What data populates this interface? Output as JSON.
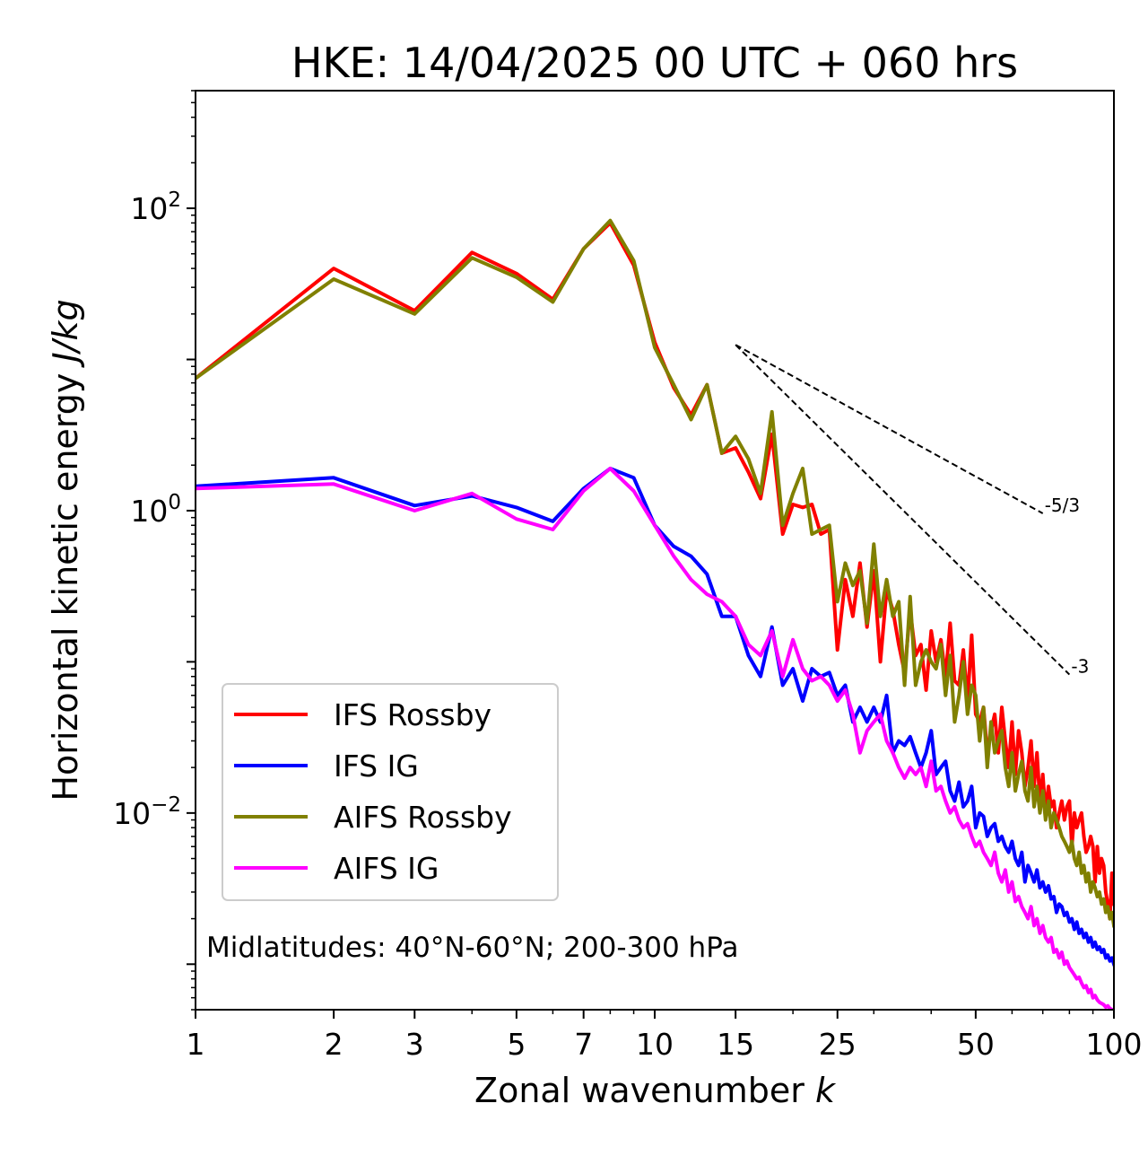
{
  "chart_data": {
    "type": "line",
    "title": "HKE: 14/04/2025 00 UTC + 060 hrs",
    "xlabel": "Zonal wavenumber",
    "xlabel_var": "k",
    "ylabel": "Horizontal kinetic energy",
    "ylabel_unit": "J/kg",
    "xscale": "log",
    "yscale": "log",
    "xlim": [
      1,
      100
    ],
    "ylim": [
      0.0005,
      600
    ],
    "xticks": [
      1,
      2,
      3,
      5,
      7,
      10,
      15,
      25,
      50,
      100
    ],
    "xtick_labels": [
      "1",
      "2",
      "3",
      "5",
      "7",
      "10",
      "15",
      "25",
      "50",
      "100"
    ],
    "yticks": [
      0.01,
      1,
      100
    ],
    "ytick_labels": [
      {
        "base": "10",
        "exp": "−2"
      },
      {
        "base": "10",
        "exp": "0"
      },
      {
        "base": "10",
        "exp": "2"
      }
    ],
    "grid": false,
    "legend_position": "lower-left",
    "annotation": "Midlatitudes: 40°N-60°N; 200-300 hPa",
    "reference_lines": [
      {
        "label": "-5/3",
        "slope": -1.6667,
        "x": [
          15,
          70
        ],
        "y0": 12.5,
        "color": "#000000"
      },
      {
        "label": "-3",
        "slope": -3,
        "x": [
          15,
          80
        ],
        "y0": 12.5,
        "color": "#000000"
      }
    ],
    "series": [
      {
        "name": "IFS Rossby",
        "color": "#ff0000",
        "x": [
          1,
          2,
          3,
          4,
          5,
          6,
          7,
          8,
          9,
          10,
          11,
          12,
          13,
          14,
          15,
          16,
          17,
          18,
          19,
          20,
          21,
          22,
          23,
          24,
          25,
          26,
          27,
          28,
          29,
          30,
          31,
          32,
          33,
          34,
          35,
          36,
          37,
          38,
          39,
          40,
          41,
          42,
          43,
          44,
          45,
          46,
          47,
          48,
          49,
          50,
          51,
          52,
          53,
          54,
          55,
          56,
          57,
          58,
          59,
          60,
          61,
          62,
          63,
          64,
          65,
          66,
          67,
          68,
          69,
          70,
          71,
          72,
          73,
          74,
          75,
          76,
          77,
          78,
          79,
          80,
          81,
          82,
          83,
          84,
          85,
          86,
          87,
          88,
          89,
          90,
          91,
          92,
          93,
          94,
          95,
          96,
          97,
          98,
          99,
          100
        ],
        "y": [
          7.5,
          40,
          21,
          51,
          37,
          25,
          54,
          80,
          42,
          13,
          6.5,
          4.3,
          6.8,
          2.4,
          2.6,
          1.8,
          1.2,
          3.2,
          0.7,
          1.1,
          1.05,
          1.1,
          0.7,
          0.75,
          0.12,
          0.35,
          0.2,
          0.45,
          0.17,
          0.4,
          0.1,
          0.3,
          0.22,
          0.13,
          0.085,
          0.22,
          0.11,
          0.13,
          0.065,
          0.16,
          0.1,
          0.14,
          0.08,
          0.18,
          0.075,
          0.07,
          0.12,
          0.055,
          0.15,
          0.045,
          0.04,
          0.05,
          0.025,
          0.035,
          0.045,
          0.025,
          0.05,
          0.03,
          0.02,
          0.04,
          0.018,
          0.035,
          0.025,
          0.015,
          0.02,
          0.03,
          0.015,
          0.025,
          0.012,
          0.018,
          0.01,
          0.015,
          0.011,
          0.012,
          0.008,
          0.01,
          0.012,
          0.009,
          0.011,
          0.012,
          0.006,
          0.01,
          0.008,
          0.009,
          0.01,
          0.007,
          0.0055,
          0.006,
          0.007,
          0.006,
          0.0035,
          0.006,
          0.004,
          0.005,
          0.0045,
          0.003,
          0.0025,
          0.002,
          0.004,
          0.0025
        ]
      },
      {
        "name": "IFS IG",
        "color": "#0000ff",
        "x": [
          1,
          2,
          3,
          4,
          5,
          6,
          7,
          8,
          9,
          10,
          11,
          12,
          13,
          14,
          15,
          16,
          17,
          18,
          19,
          20,
          21,
          22,
          23,
          24,
          25,
          26,
          27,
          28,
          29,
          30,
          31,
          32,
          33,
          34,
          35,
          36,
          37,
          38,
          39,
          40,
          41,
          42,
          43,
          44,
          45,
          46,
          47,
          48,
          49,
          50,
          51,
          52,
          53,
          54,
          55,
          56,
          57,
          58,
          59,
          60,
          61,
          62,
          63,
          64,
          65,
          66,
          67,
          68,
          69,
          70,
          71,
          72,
          73,
          74,
          75,
          76,
          77,
          78,
          79,
          80,
          81,
          82,
          83,
          84,
          85,
          86,
          87,
          88,
          89,
          90,
          91,
          92,
          93,
          94,
          95,
          96,
          97,
          98,
          99,
          100
        ],
        "y": [
          1.45,
          1.65,
          1.08,
          1.25,
          1.05,
          0.85,
          1.4,
          1.9,
          1.65,
          0.8,
          0.58,
          0.5,
          0.38,
          0.2,
          0.2,
          0.11,
          0.08,
          0.17,
          0.07,
          0.09,
          0.055,
          0.09,
          0.08,
          0.085,
          0.06,
          0.07,
          0.04,
          0.05,
          0.04,
          0.05,
          0.04,
          0.06,
          0.025,
          0.03,
          0.028,
          0.032,
          0.025,
          0.02,
          0.025,
          0.035,
          0.018,
          0.02,
          0.022,
          0.014,
          0.012,
          0.016,
          0.011,
          0.012,
          0.015,
          0.008,
          0.01,
          0.0095,
          0.007,
          0.008,
          0.0085,
          0.0065,
          0.007,
          0.006,
          0.0055,
          0.0065,
          0.005,
          0.0045,
          0.0055,
          0.0035,
          0.0045,
          0.004,
          0.0035,
          0.0042,
          0.0032,
          0.0035,
          0.003,
          0.0033,
          0.0027,
          0.0028,
          0.0022,
          0.0025,
          0.0024,
          0.0021,
          0.0022,
          0.0019,
          0.002,
          0.0017,
          0.0019,
          0.0016,
          0.0017,
          0.0015,
          0.0016,
          0.0014,
          0.0015,
          0.0013,
          0.0014,
          0.00125,
          0.0013,
          0.0012,
          0.00125,
          0.0011,
          0.00115,
          0.00105,
          0.0011,
          0.001
        ]
      },
      {
        "name": "AIFS Rossby",
        "color": "#808000",
        "x": [
          1,
          2,
          3,
          4,
          5,
          6,
          7,
          8,
          9,
          10,
          11,
          12,
          13,
          14,
          15,
          16,
          17,
          18,
          19,
          20,
          21,
          22,
          23,
          24,
          25,
          26,
          27,
          28,
          29,
          30,
          31,
          32,
          33,
          34,
          35,
          36,
          37,
          38,
          39,
          40,
          41,
          42,
          43,
          44,
          45,
          46,
          47,
          48,
          49,
          50,
          51,
          52,
          53,
          54,
          55,
          56,
          57,
          58,
          59,
          60,
          61,
          62,
          63,
          64,
          65,
          66,
          67,
          68,
          69,
          70,
          71,
          72,
          73,
          74,
          75,
          76,
          77,
          78,
          79,
          80,
          81,
          82,
          83,
          84,
          85,
          86,
          87,
          88,
          89,
          90,
          91,
          92,
          93,
          94,
          95,
          96,
          97,
          98,
          99,
          100
        ],
        "y": [
          7.5,
          34,
          20,
          47,
          35,
          24,
          54,
          83,
          45,
          12,
          6.8,
          4,
          6.8,
          2.4,
          3.1,
          2.2,
          1.3,
          4.5,
          0.8,
          1.3,
          1.9,
          0.7,
          0.75,
          0.8,
          0.25,
          0.45,
          0.32,
          0.4,
          0.18,
          0.6,
          0.2,
          0.35,
          0.2,
          0.25,
          0.07,
          0.27,
          0.07,
          0.1,
          0.12,
          0.1,
          0.09,
          0.13,
          0.06,
          0.11,
          0.04,
          0.06,
          0.1,
          0.045,
          0.07,
          0.06,
          0.03,
          0.05,
          0.02,
          0.04,
          0.025,
          0.03,
          0.035,
          0.02,
          0.015,
          0.025,
          0.014,
          0.018,
          0.022,
          0.014,
          0.012,
          0.02,
          0.011,
          0.015,
          0.01,
          0.014,
          0.009,
          0.012,
          0.008,
          0.01,
          0.009,
          0.008,
          0.007,
          0.0065,
          0.006,
          0.0055,
          0.0065,
          0.005,
          0.0045,
          0.0055,
          0.004,
          0.0045,
          0.0035,
          0.004,
          0.003,
          0.0035,
          0.0032,
          0.0028,
          0.003,
          0.0025,
          0.0027,
          0.0022,
          0.0024,
          0.002,
          0.0022,
          0.0018
        ]
      },
      {
        "name": "AIFS IG",
        "color": "#ff00ff",
        "x": [
          1,
          2,
          3,
          4,
          5,
          6,
          7,
          8,
          9,
          10,
          11,
          12,
          13,
          14,
          15,
          16,
          17,
          18,
          19,
          20,
          21,
          22,
          23,
          24,
          25,
          26,
          27,
          28,
          29,
          30,
          31,
          32,
          33,
          34,
          35,
          36,
          37,
          38,
          39,
          40,
          41,
          42,
          43,
          44,
          45,
          46,
          47,
          48,
          49,
          50,
          51,
          52,
          53,
          54,
          55,
          56,
          57,
          58,
          59,
          60,
          61,
          62,
          63,
          64,
          65,
          66,
          67,
          68,
          69,
          70,
          71,
          72,
          73,
          74,
          75,
          76,
          77,
          78,
          79,
          80,
          81,
          82,
          83,
          84,
          85,
          86,
          87,
          88,
          89,
          90,
          91,
          92,
          93,
          94,
          95,
          96,
          97,
          98,
          99,
          100
        ],
        "y": [
          1.4,
          1.5,
          1.0,
          1.3,
          0.88,
          0.75,
          1.35,
          1.9,
          1.35,
          0.8,
          0.5,
          0.35,
          0.28,
          0.25,
          0.2,
          0.13,
          0.11,
          0.16,
          0.08,
          0.14,
          0.09,
          0.075,
          0.08,
          0.07,
          0.055,
          0.065,
          0.045,
          0.025,
          0.035,
          0.04,
          0.045,
          0.03,
          0.025,
          0.02,
          0.017,
          0.02,
          0.018,
          0.02,
          0.015,
          0.022,
          0.014,
          0.015,
          0.012,
          0.01,
          0.011,
          0.009,
          0.008,
          0.0085,
          0.007,
          0.006,
          0.0065,
          0.0055,
          0.005,
          0.0045,
          0.0055,
          0.004,
          0.0035,
          0.0042,
          0.003,
          0.0035,
          0.0026,
          0.0028,
          0.0024,
          0.0022,
          0.002,
          0.0024,
          0.0018,
          0.002,
          0.0016,
          0.0018,
          0.0015,
          0.0014,
          0.0015,
          0.0012,
          0.00125,
          0.0011,
          0.0012,
          0.001,
          0.00105,
          0.00095,
          0.0009,
          0.00085,
          0.0008,
          0.00082,
          0.00075,
          0.0007,
          0.00072,
          0.00065,
          0.00068,
          0.0006,
          0.00062,
          0.00058,
          0.00056,
          0.00055,
          0.00054,
          0.00052,
          0.00053,
          0.00051,
          0.0005,
          0.0005
        ]
      }
    ]
  }
}
